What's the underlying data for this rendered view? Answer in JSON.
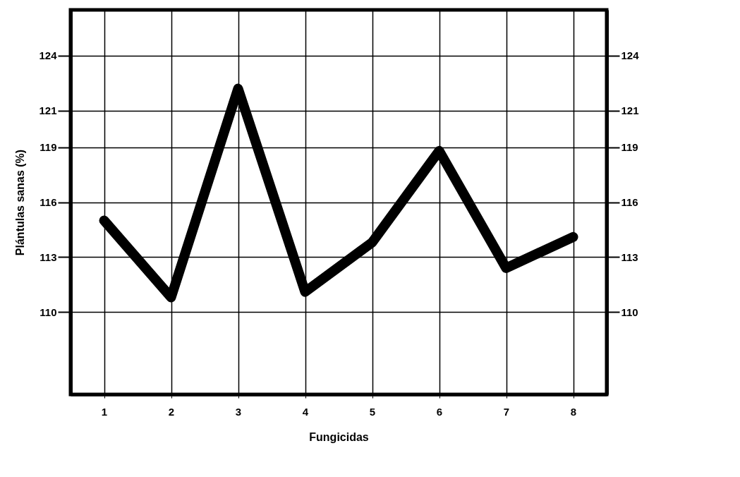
{
  "chart_data": {
    "type": "line",
    "xlabel": "Fungicidas",
    "ylabel": "Plántulas sanas (%)",
    "categories": [
      "1",
      "2",
      "3",
      "4",
      "5",
      "6",
      "7",
      "8"
    ],
    "series": [
      {
        "color": "#000000",
        "values": [
          115,
          110.8,
          122.2,
          111.1,
          113.8,
          118.8,
          112.4,
          114.1
        ]
      }
    ],
    "ylim": [
      105.5,
      126.5
    ],
    "yticks": [
      110,
      113,
      116,
      119,
      121,
      124
    ],
    "y2lim": [
      105.5,
      126.5
    ],
    "y2ticks": [
      110,
      113,
      116,
      119,
      121,
      124
    ],
    "grid": true,
    "legend": false,
    "marker": "none",
    "line_style": "solid"
  }
}
